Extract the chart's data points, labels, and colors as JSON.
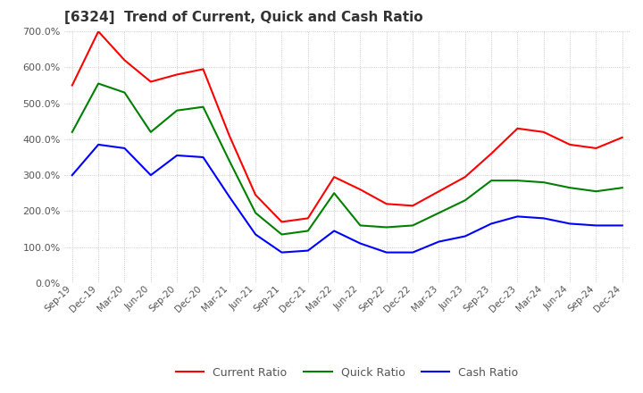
{
  "title": "[6324]  Trend of Current, Quick and Cash Ratio",
  "x_labels": [
    "Sep-19",
    "Dec-19",
    "Mar-20",
    "Jun-20",
    "Sep-20",
    "Dec-20",
    "Mar-21",
    "Jun-21",
    "Sep-21",
    "Dec-21",
    "Mar-22",
    "Jun-22",
    "Sep-22",
    "Dec-22",
    "Mar-23",
    "Jun-23",
    "Sep-23",
    "Dec-23",
    "Mar-24",
    "Jun-24",
    "Sep-24",
    "Dec-24"
  ],
  "current_ratio": [
    550,
    700,
    620,
    560,
    580,
    595,
    410,
    245,
    170,
    180,
    295,
    260,
    220,
    215,
    255,
    295,
    360,
    430,
    420,
    385,
    375,
    405
  ],
  "quick_ratio": [
    420,
    555,
    530,
    420,
    480,
    490,
    340,
    195,
    135,
    145,
    250,
    160,
    155,
    160,
    195,
    230,
    285,
    285,
    280,
    265,
    255,
    265
  ],
  "cash_ratio": [
    300,
    385,
    375,
    300,
    355,
    350,
    240,
    135,
    85,
    90,
    145,
    110,
    85,
    85,
    115,
    130,
    165,
    185,
    180,
    165,
    160,
    160
  ],
  "ylim": [
    0,
    700
  ],
  "yticks": [
    0,
    100,
    200,
    300,
    400,
    500,
    600,
    700
  ],
  "current_color": "#ff0000",
  "quick_color": "#008000",
  "cash_color": "#0000ff",
  "bg_color": "#ffffff",
  "grid_color": "#aaaaaa"
}
